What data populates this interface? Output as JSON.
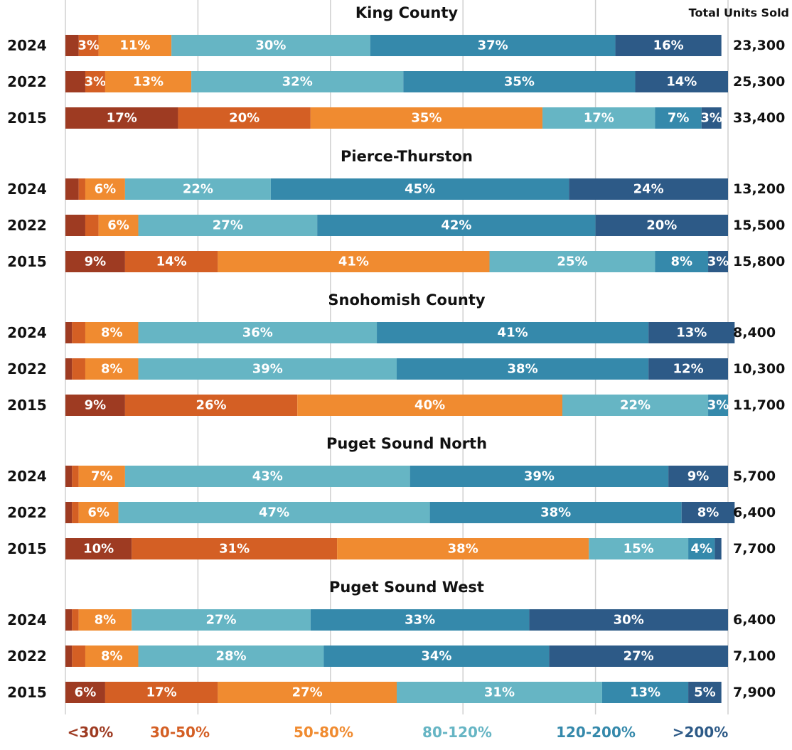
{
  "chart_data": {
    "type": "bar",
    "orientation": "horizontal",
    "stacked": true,
    "group_titles": [
      "King County",
      "Pierce-Thurston",
      "Snohomish County",
      "Puget Sound North",
      "Puget Sound West"
    ],
    "categories": [
      "2024",
      "2022",
      "2015",
      "2024",
      "2022",
      "2015",
      "2024",
      "2022",
      "2015",
      "2024",
      "2022",
      "2015",
      "2024",
      "2022",
      "2015"
    ],
    "series": [
      {
        "name": "<30%",
        "color": "#9e3b22",
        "values": [
          2,
          3,
          17,
          2,
          3,
          9,
          1,
          1,
          9,
          1,
          1,
          10,
          1,
          1,
          6
        ],
        "value_labels": [
          null,
          null,
          "17%",
          null,
          null,
          "9%",
          null,
          null,
          "9%",
          null,
          null,
          "10%",
          null,
          null,
          "6%"
        ]
      },
      {
        "name": "30-50%",
        "color": "#d45f24",
        "values": [
          3,
          3,
          20,
          1,
          2,
          14,
          2,
          2,
          26,
          1,
          1,
          31,
          1,
          2,
          17
        ],
        "value_labels": [
          "3%",
          "3%",
          "20%",
          null,
          null,
          "14%",
          null,
          null,
          "26%",
          null,
          null,
          "31%",
          null,
          null,
          "17%"
        ]
      },
      {
        "name": "50-80%",
        "color": "#f08b30",
        "values": [
          11,
          13,
          35,
          6,
          6,
          41,
          8,
          8,
          40,
          7,
          6,
          38,
          8,
          8,
          27
        ],
        "value_labels": [
          "11%",
          "13%",
          "35%",
          "6%",
          "6%",
          "41%",
          "8%",
          "8%",
          "40%",
          "7%",
          "6%",
          "38%",
          "8%",
          "8%",
          "27%"
        ]
      },
      {
        "name": "80-120%",
        "color": "#66b5c4",
        "values": [
          30,
          32,
          17,
          22,
          27,
          25,
          36,
          39,
          22,
          43,
          47,
          15,
          27,
          28,
          31
        ],
        "value_labels": [
          "30%",
          "32%",
          "17%",
          "22%",
          "27%",
          "25%",
          "36%",
          "39%",
          "22%",
          "43%",
          "47%",
          "15%",
          "27%",
          "28%",
          "31%"
        ]
      },
      {
        "name": "120-200%",
        "color": "#3589ab",
        "values": [
          37,
          35,
          7,
          45,
          42,
          8,
          41,
          38,
          3,
          39,
          38,
          4,
          33,
          34,
          13
        ],
        "value_labels": [
          "37%",
          "35%",
          "7%",
          "45%",
          "42%",
          "8%",
          "41%",
          "38%",
          "3%",
          "39%",
          "38%",
          "4%",
          "33%",
          "34%",
          "13%"
        ]
      },
      {
        "name": ">200%",
        "color": "#2d5a87",
        "values": [
          16,
          14,
          3,
          24,
          20,
          3,
          13,
          12,
          0,
          9,
          8,
          1,
          30,
          27,
          5
        ],
        "value_labels": [
          "16%",
          "14%",
          "3%",
          "24%",
          "20%",
          "3%",
          "13%",
          "12%",
          null,
          "9%",
          "8%",
          null,
          "30%",
          "27%",
          "5%"
        ]
      }
    ],
    "totals": {
      "title": "Total Units Sold",
      "values": [
        23300,
        25300,
        33400,
        13200,
        15500,
        15800,
        8400,
        10300,
        11700,
        5700,
        6400,
        7700,
        6400,
        7100,
        7900
      ],
      "value_labels": [
        "23,300",
        "25,300",
        "33,400",
        "13,200",
        "15,500",
        "15,800",
        "8,400",
        "10,300",
        "11,700",
        "5,700",
        "6,400",
        "7,700",
        "6,400",
        "7,100",
        "7,900"
      ]
    },
    "xlim": [
      0,
      100
    ],
    "xticks": [
      0,
      20,
      40,
      60,
      80,
      100
    ],
    "grid": true
  }
}
